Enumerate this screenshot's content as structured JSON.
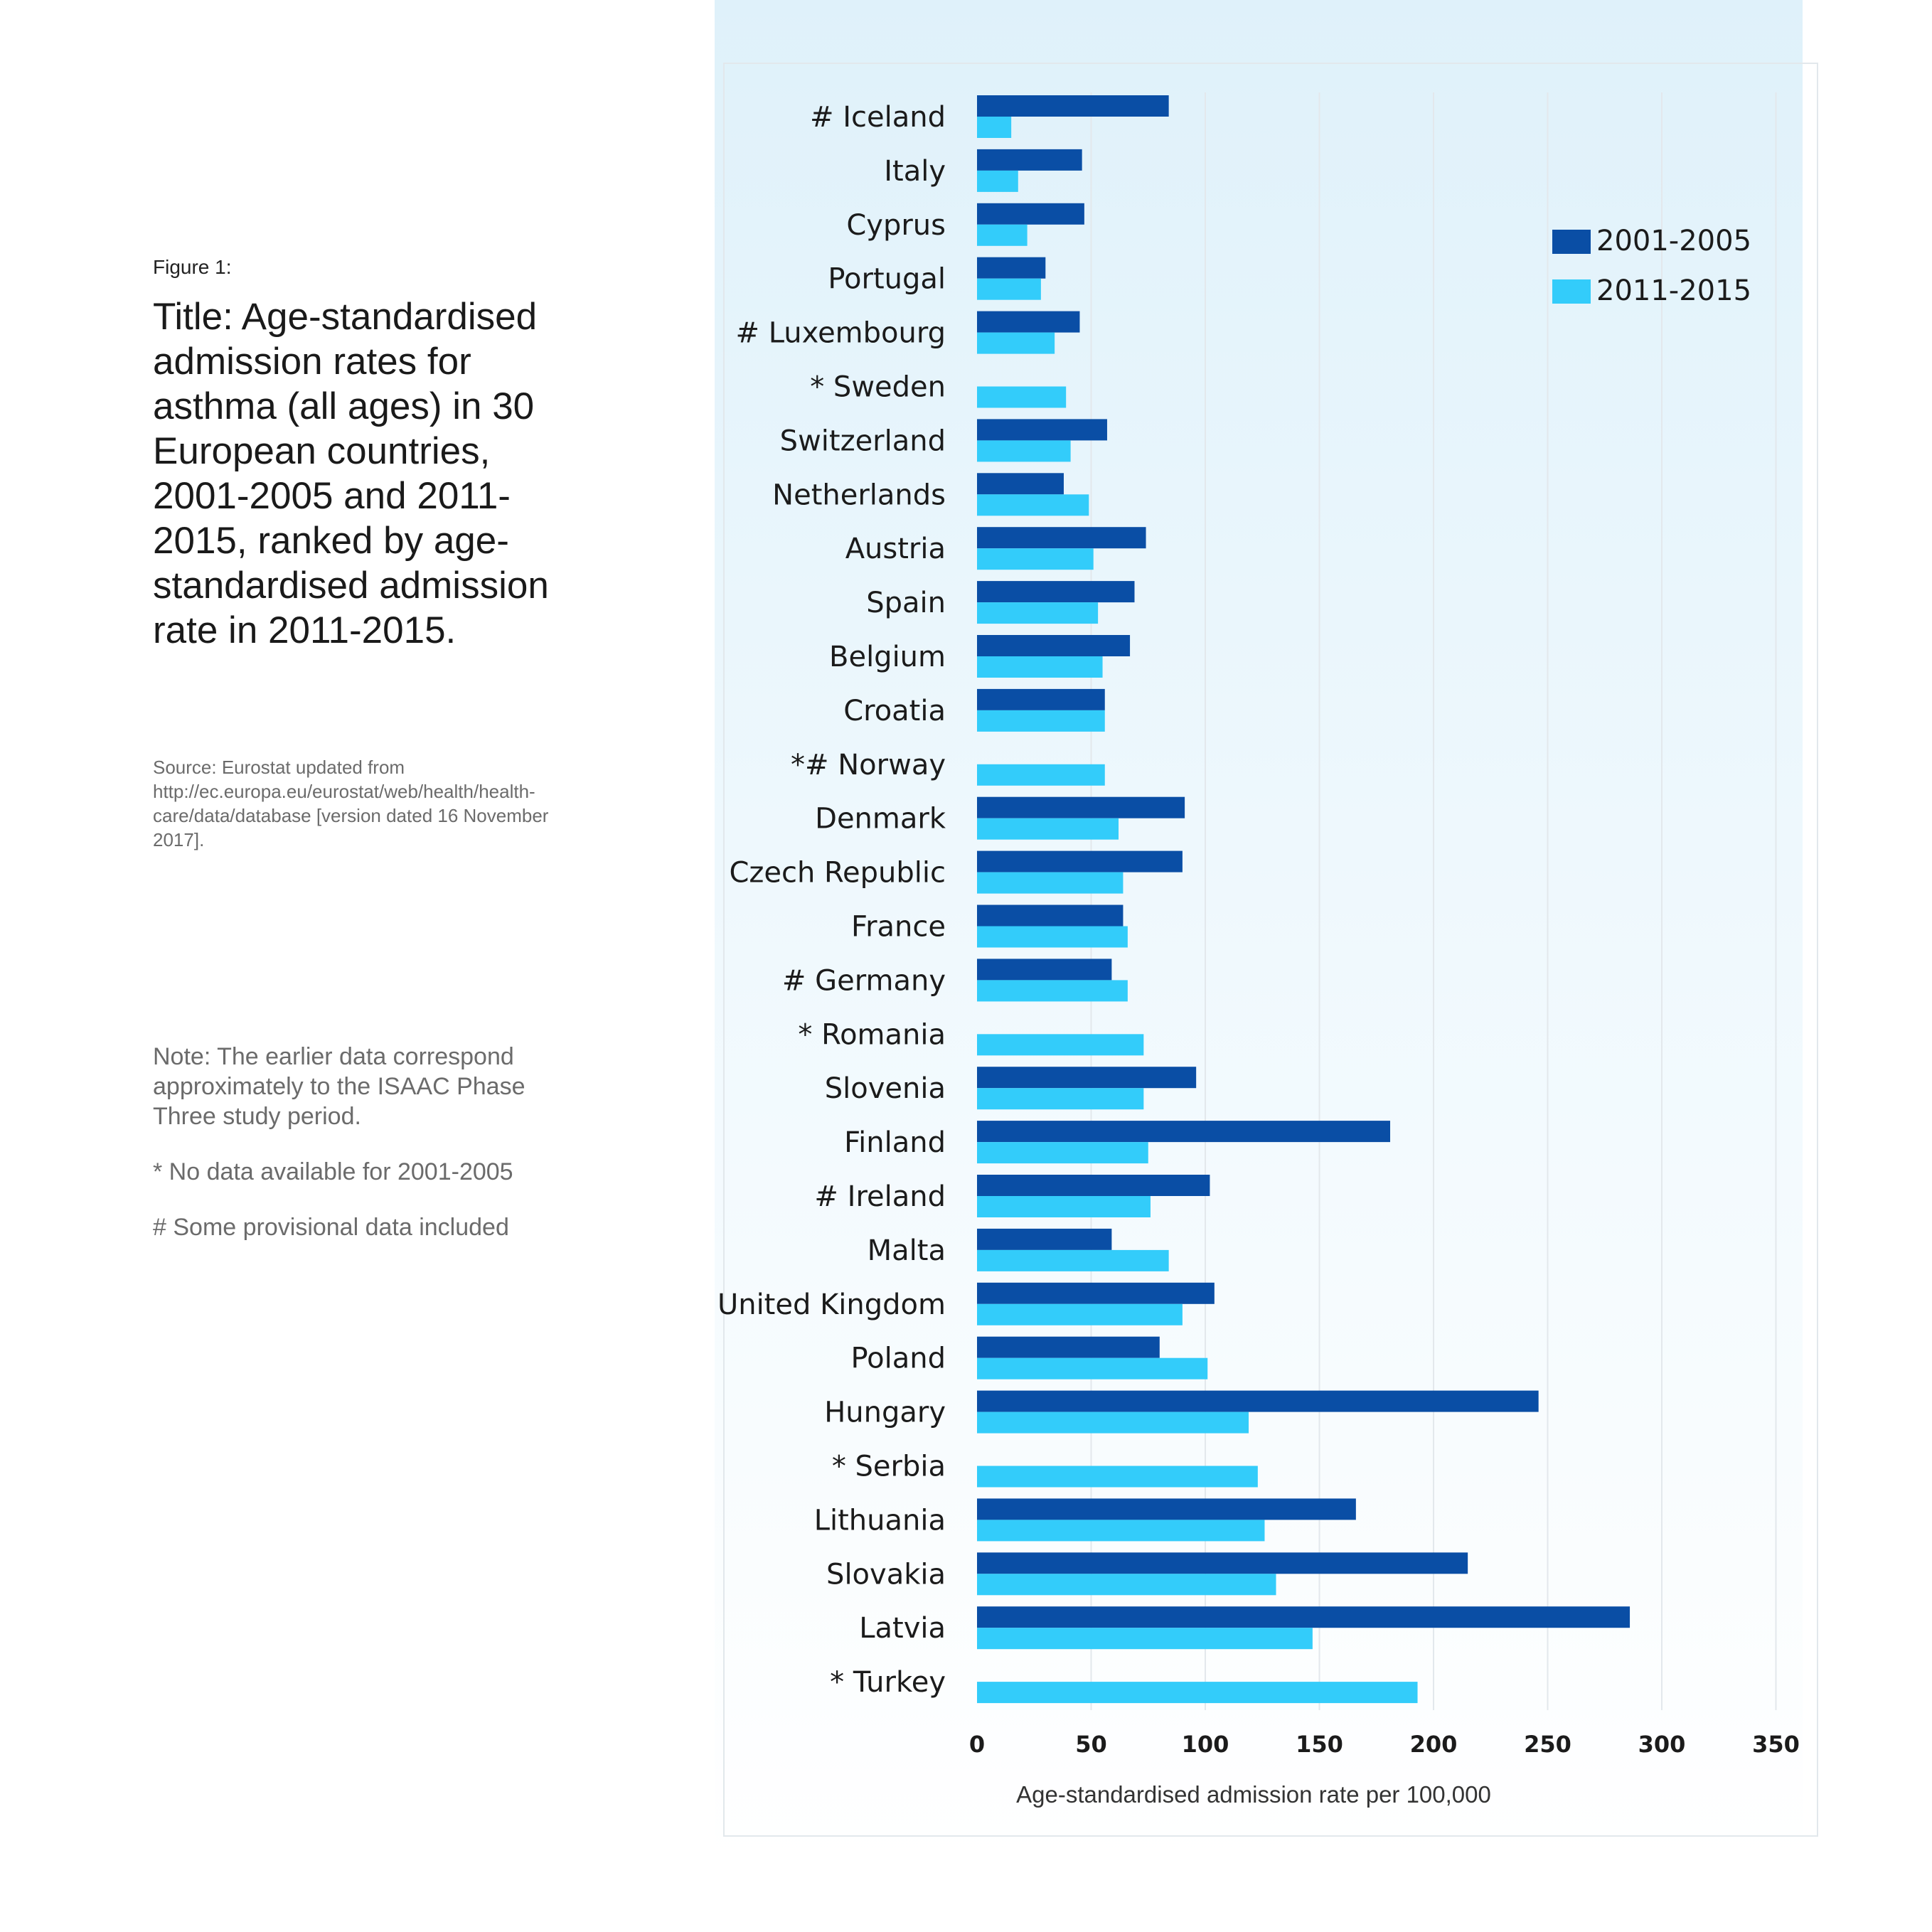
{
  "figure": {
    "label": "Figure 1:",
    "title": "Title: Age-standardised admission rates for asthma (all ages) in 30 European countries, 2001-2005 and 2011-2015, ranked by age-standardised admission rate in 2011-2015.",
    "source": "Source: Eurostat updated from http://ec.europa.eu/eurostat/web/health/health-care/data/database [version dated 16 November 2017].",
    "notes": [
      "Note: The earlier data correspond approximately to the ISAAC Phase Three study period.",
      "* No data available for 2001-2005",
      "# Some provisional data included"
    ]
  },
  "colors": {
    "series_2001": "#0a4ea5",
    "series_2011": "#33ccfa",
    "grid": "#e3e8ec"
  },
  "chart_data": {
    "type": "bar",
    "orientation": "horizontal",
    "categories": [
      "# Iceland",
      "Italy",
      "Cyprus",
      "Portugal",
      "# Luxembourg",
      "* Sweden",
      "Switzerland",
      "Netherlands",
      "Austria",
      "Spain",
      "Belgium",
      "Croatia",
      "*# Norway",
      "Denmark",
      "Czech Republic",
      "France",
      "# Germany",
      "* Romania",
      "Slovenia",
      "Finland",
      "# Ireland",
      "Malta",
      "United Kingdom",
      "Poland",
      "Hungary",
      "* Serbia",
      "Lithuania",
      "Slovakia",
      "Latvia",
      "* Turkey"
    ],
    "series": [
      {
        "name": "2001-2005",
        "values": [
          84,
          46,
          47,
          30,
          45,
          null,
          57,
          38,
          74,
          69,
          67,
          56,
          null,
          91,
          90,
          64,
          59,
          null,
          96,
          181,
          102,
          59,
          104,
          80,
          246,
          null,
          166,
          215,
          286,
          null
        ]
      },
      {
        "name": "2011-2015",
        "values": [
          15,
          18,
          22,
          28,
          34,
          39,
          41,
          49,
          51,
          53,
          55,
          56,
          56,
          62,
          64,
          66,
          66,
          73,
          73,
          75,
          76,
          84,
          90,
          101,
          119,
          123,
          126,
          131,
          147,
          193
        ]
      }
    ],
    "x_ticks": [
      0,
      50,
      100,
      150,
      200,
      250,
      300,
      350
    ],
    "xlim": [
      0,
      350
    ],
    "xlabel": "Age-standardised admission rate per 100,000",
    "grid": true,
    "legend_position": "top-right"
  }
}
